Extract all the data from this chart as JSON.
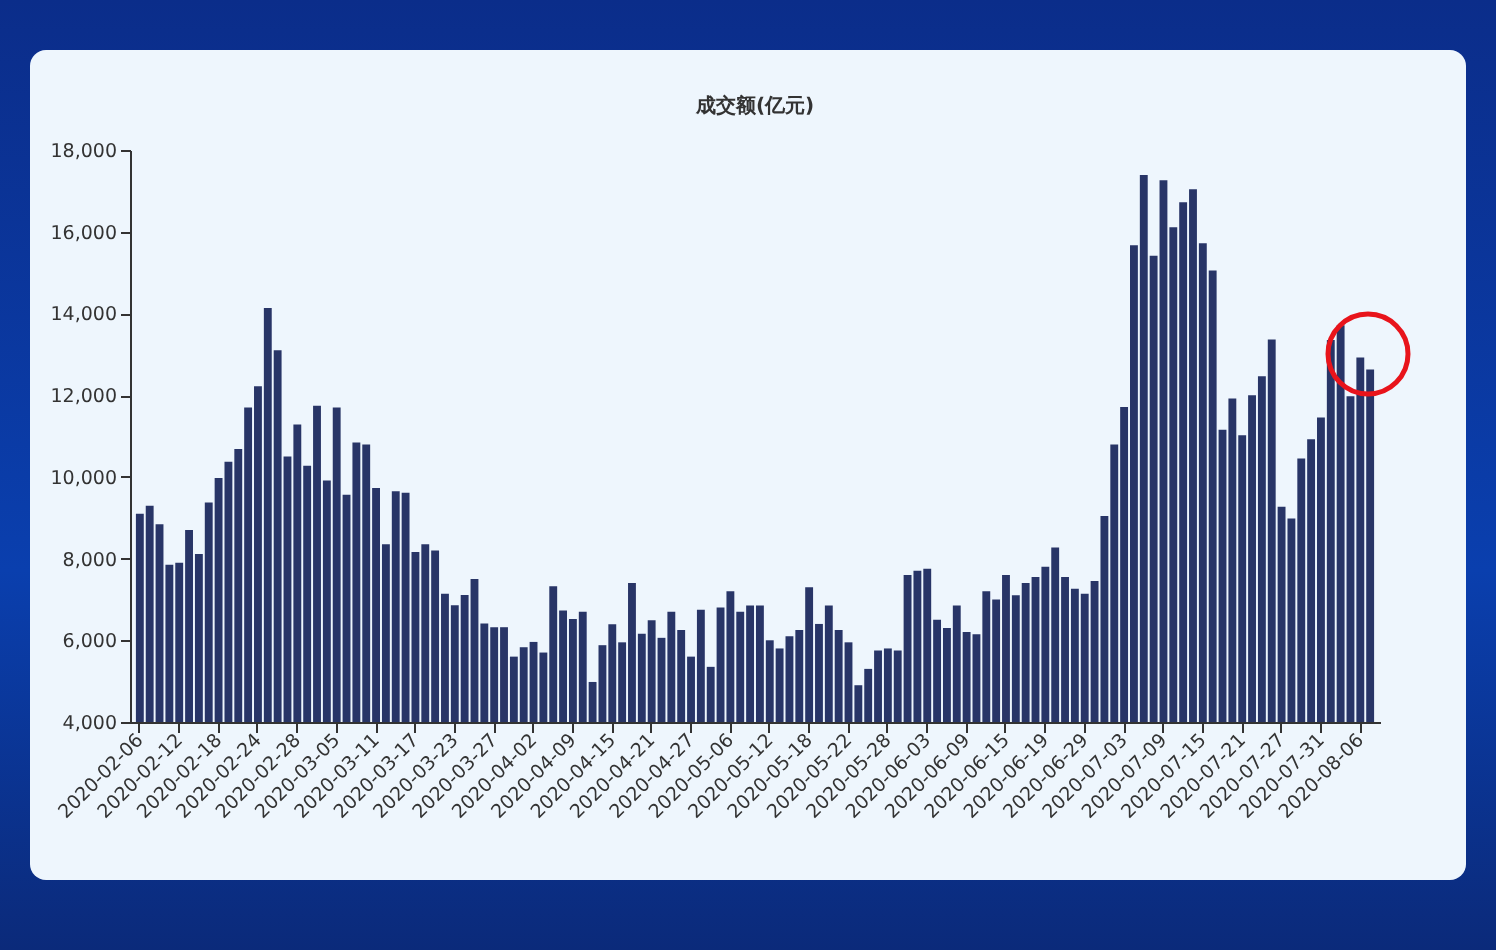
{
  "chart_data": {
    "type": "bar",
    "title": "成交额(亿元)",
    "categories": [
      "2020-02-06",
      null,
      null,
      null,
      "2020-02-12",
      null,
      null,
      null,
      "2020-02-18",
      null,
      null,
      null,
      "2020-02-24",
      null,
      null,
      null,
      "2020-02-28",
      null,
      null,
      null,
      "2020-03-05",
      null,
      null,
      null,
      "2020-03-11",
      null,
      null,
      null,
      "2020-03-17",
      null,
      null,
      null,
      "2020-03-23",
      null,
      null,
      null,
      "2020-03-27",
      null,
      null,
      null,
      "2020-04-02",
      null,
      null,
      null,
      "2020-04-09",
      null,
      null,
      null,
      "2020-04-15",
      null,
      null,
      null,
      "2020-04-21",
      null,
      null,
      null,
      "2020-04-27",
      null,
      null,
      null,
      "2020-05-06",
      null,
      null,
      null,
      "2020-05-12",
      null,
      null,
      null,
      "2020-05-18",
      null,
      null,
      null,
      "2020-05-22",
      null,
      null,
      null,
      "2020-05-28",
      null,
      null,
      null,
      "2020-06-03",
      null,
      null,
      null,
      "2020-06-09",
      null,
      null,
      null,
      "2020-06-15",
      null,
      null,
      null,
      "2020-06-19",
      null,
      null,
      null,
      "2020-06-29",
      null,
      null,
      null,
      "2020-07-03",
      null,
      null,
      null,
      "2020-07-09",
      null,
      null,
      null,
      "2020-07-15",
      null,
      null,
      null,
      "2020-07-21",
      null,
      null,
      null,
      "2020-07-27",
      null,
      null,
      null,
      "2020-07-31",
      null,
      null,
      null,
      "2020-08-06",
      null
    ],
    "values": [
      9100,
      9290,
      8840,
      7850,
      7900,
      8700,
      8110,
      9370,
      9970,
      10370,
      10680,
      11700,
      12220,
      14130,
      13100,
      10500,
      11280,
      10270,
      11740,
      9910,
      11700,
      9560,
      10840,
      10790,
      9730,
      8350,
      9650,
      9610,
      8160,
      8350,
      8200,
      7140,
      6860,
      7110,
      7500,
      6410,
      6320,
      6320,
      5600,
      5830,
      5960,
      5700,
      7320,
      6730,
      6520,
      6700,
      4980,
      5880,
      6390,
      5950,
      7400,
      6160,
      6490,
      6060,
      6700,
      6250,
      5600,
      6750,
      5350,
      6800,
      7200,
      6700,
      6850,
      6850,
      6000,
      5800,
      6100,
      6250,
      7300,
      6400,
      6850,
      6250,
      5950,
      4900,
      5300,
      5750,
      5800,
      5750,
      7600,
      7700,
      7750,
      6500,
      6300,
      6850,
      6200,
      6150,
      7200,
      7000,
      7600,
      7100,
      7400,
      7550,
      7800,
      8270,
      7550,
      7260,
      7140,
      7450,
      9040,
      10790,
      11710,
      15670,
      17390,
      15410,
      17260,
      16110,
      16720,
      17040,
      15720,
      15050,
      11150,
      11920,
      11020,
      12000,
      12460,
      13360,
      9270,
      8980,
      10450,
      10920,
      11450,
      13350,
      13710,
      11970,
      12920,
      12630
    ],
    "color": "#283567",
    "ylim": [
      4000,
      18000
    ],
    "yticks": [
      {
        "value": 4000,
        "label": "4,000"
      },
      {
        "value": 6000,
        "label": "6,000"
      },
      {
        "value": 8000,
        "label": "8,000"
      },
      {
        "value": 10000,
        "label": "10,000"
      },
      {
        "value": 12000,
        "label": "12,000"
      },
      {
        "value": 14000,
        "label": "14,000"
      },
      {
        "value": 16000,
        "label": "16,000"
      },
      {
        "value": 18000,
        "label": "18,000"
      }
    ],
    "grid": false
  }
}
